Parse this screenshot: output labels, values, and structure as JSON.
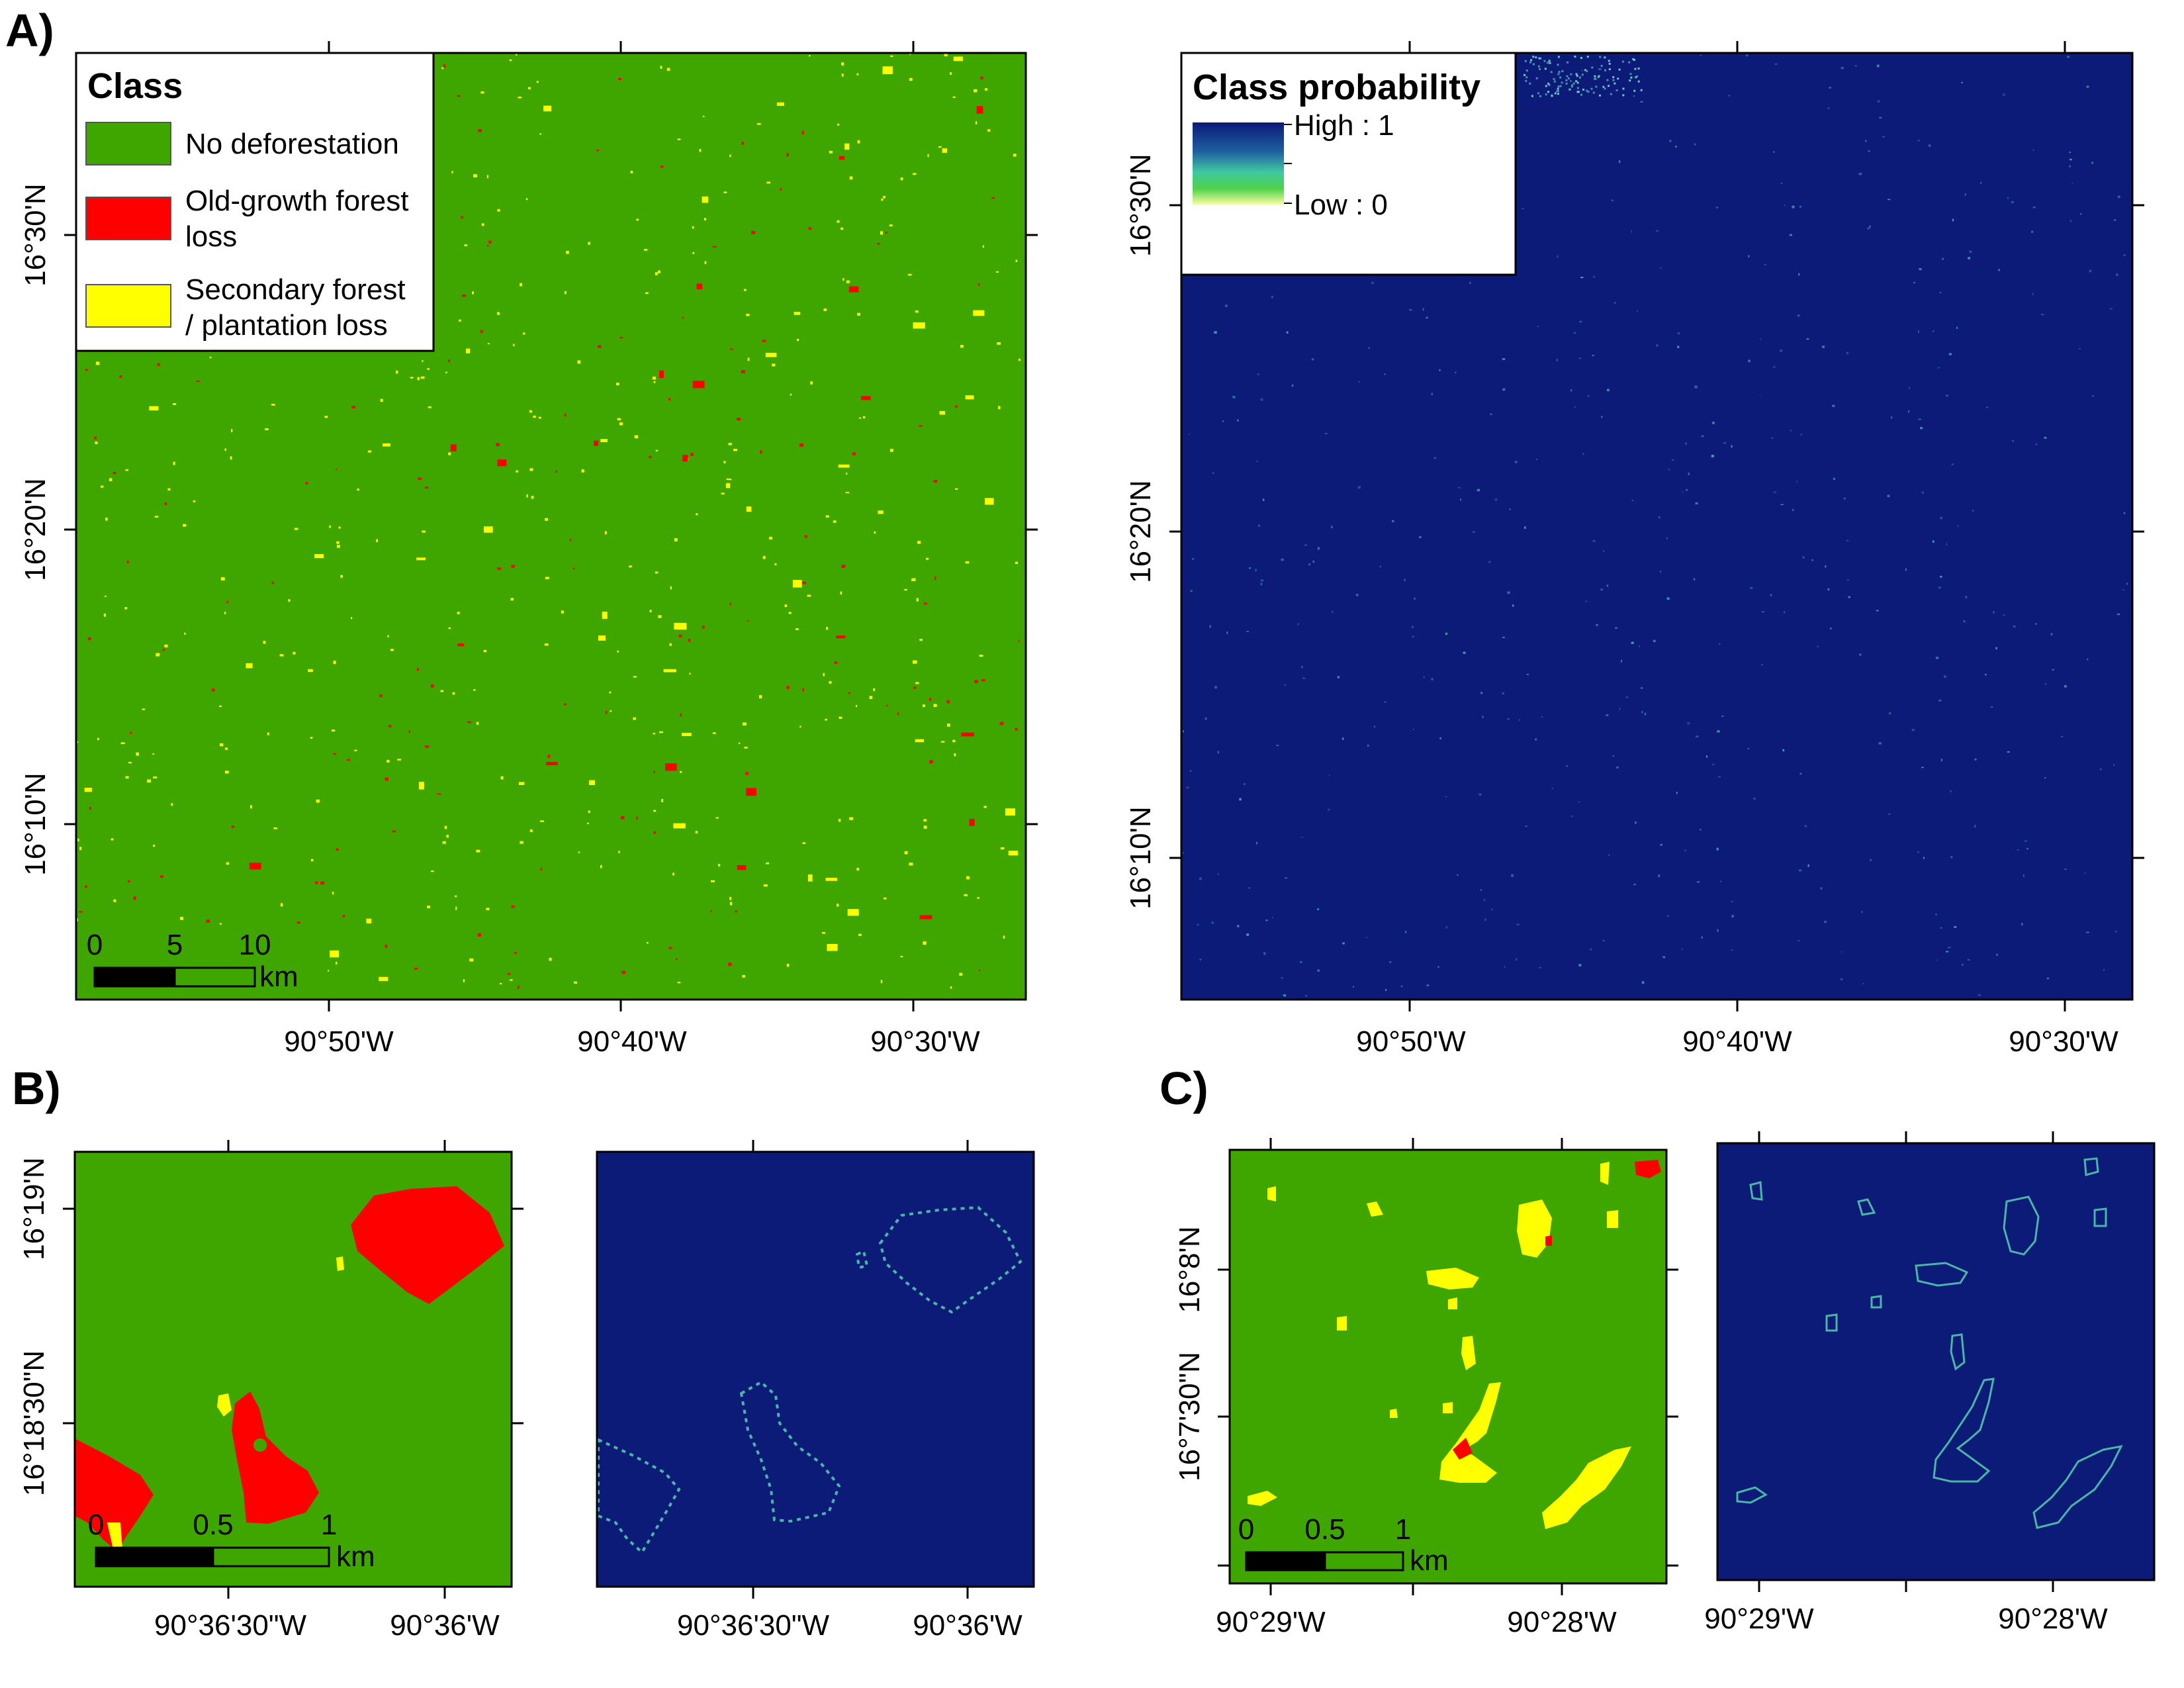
{
  "panels": {
    "a": {
      "label": "A)",
      "class_map": {
        "legend": {
          "title": "Class",
          "entries": [
            {
              "label_lines": [
                "No deforestation"
              ],
              "color": "#3fa600"
            },
            {
              "label_lines": [
                "Old-growth forest",
                "loss"
              ],
              "color": "#ff0000"
            },
            {
              "label_lines": [
                "Secondary forest",
                "/ plantation loss"
              ],
              "color": "#ffff00"
            }
          ]
        },
        "y_ticks": [
          "16°30'N",
          "16°20'N",
          "16°10'N"
        ],
        "x_ticks": [
          "90°50'W",
          "90°40'W",
          "90°30'W"
        ],
        "scale": {
          "ticks": [
            "0",
            "5",
            "10"
          ],
          "unit": "km"
        }
      },
      "prob_map": {
        "legend": {
          "title": "Class probability",
          "high": "High : 1",
          "low": "Low : 0"
        },
        "y_ticks": [
          "16°30'N",
          "16°20'N",
          "16°10'N"
        ],
        "x_ticks": [
          "90°50'W",
          "90°40'W",
          "90°30'W"
        ]
      }
    },
    "b": {
      "label": "B)",
      "class_map": {
        "y_ticks": [
          "16°19'N",
          "16°18'30\"N"
        ],
        "x_ticks": [
          "90°36'30\"W",
          "90°36'W"
        ],
        "scale": {
          "ticks": [
            "0",
            "0.5",
            "1"
          ],
          "unit": "km"
        }
      },
      "prob_map": {
        "x_ticks": [
          "90°36'30\"W",
          "90°36'W"
        ]
      }
    },
    "c": {
      "label": "C)",
      "class_map": {
        "y_ticks": [
          "16°8'N",
          "16°7'30\"N"
        ],
        "x_ticks": [
          "90°29'W",
          "90°28'W"
        ],
        "scale": {
          "ticks": [
            "0",
            "0.5",
            "1"
          ],
          "unit": "km"
        }
      },
      "prob_map": {
        "x_ticks": [
          "90°29'W",
          "90°28'W"
        ]
      }
    }
  },
  "colors": {
    "no_deforestation": "#3fa600",
    "old_growth_loss": "#ff0000",
    "secondary_loss": "#ffff00",
    "probability_high": "#0c1a78",
    "probability_mid": "#3fc9a0",
    "probability_low": "#ffffa8"
  }
}
